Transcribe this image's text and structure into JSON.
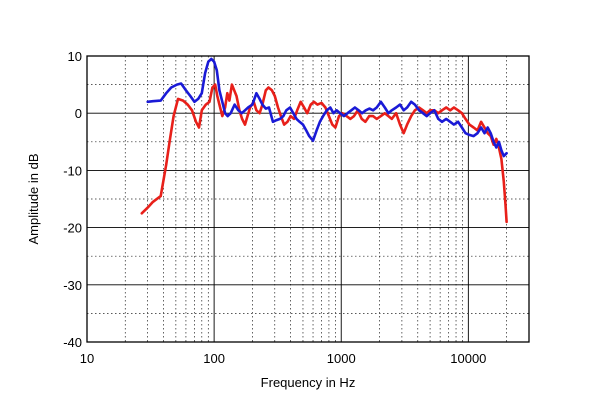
{
  "chart_data": {
    "type": "line",
    "xlabel": "Frequency in Hz",
    "ylabel": "Amplitude in dB",
    "x_scale": "log",
    "xlim": [
      10,
      30000
    ],
    "ylim": [
      -40,
      10
    ],
    "x_ticks": [
      10,
      100,
      1000,
      10000
    ],
    "x_tick_labels": [
      "10",
      "100",
      "1000",
      "10000"
    ],
    "y_ticks": [
      10,
      0,
      -10,
      -20,
      -30,
      -40
    ],
    "y_tick_labels": [
      "10",
      "0",
      "-10",
      "-20",
      "-30",
      "-40"
    ],
    "grid": true,
    "legend": "none",
    "series": [
      {
        "color": "#e8201a",
        "points": [
          [
            27,
            -17.5
          ],
          [
            30,
            -16.5
          ],
          [
            33,
            -15.5
          ],
          [
            38,
            -14.5
          ],
          [
            42,
            -9
          ],
          [
            45,
            -4.5
          ],
          [
            48,
            -0.5
          ],
          [
            52,
            2.5
          ],
          [
            57,
            2.2
          ],
          [
            62,
            1.5
          ],
          [
            67,
            0.5
          ],
          [
            72,
            -1.5
          ],
          [
            76,
            -2.5
          ],
          [
            80,
            0.5
          ],
          [
            86,
            1.5
          ],
          [
            92,
            2
          ],
          [
            97,
            4.5
          ],
          [
            102,
            5
          ],
          [
            106,
            3
          ],
          [
            110,
            1.5
          ],
          [
            116,
            -0.5
          ],
          [
            122,
            1
          ],
          [
            127,
            3.5
          ],
          [
            132,
            2.2
          ],
          [
            138,
            5
          ],
          [
            144,
            4
          ],
          [
            150,
            3
          ],
          [
            158,
            0.5
          ],
          [
            166,
            -1
          ],
          [
            175,
            -2
          ],
          [
            183,
            -0.5
          ],
          [
            192,
            1
          ],
          [
            205,
            2
          ],
          [
            215,
            0.5
          ],
          [
            228,
            0
          ],
          [
            240,
            1.5
          ],
          [
            255,
            4
          ],
          [
            268,
            4.5
          ],
          [
            285,
            4
          ],
          [
            300,
            3
          ],
          [
            318,
            1
          ],
          [
            335,
            -0.5
          ],
          [
            355,
            -2
          ],
          [
            378,
            -1.5
          ],
          [
            400,
            -0.5
          ],
          [
            425,
            -1
          ],
          [
            450,
            0.5
          ],
          [
            480,
            2
          ],
          [
            510,
            1
          ],
          [
            540,
            0
          ],
          [
            575,
            1.5
          ],
          [
            610,
            2
          ],
          [
            650,
            1.5
          ],
          [
            700,
            1.8
          ],
          [
            750,
            1
          ],
          [
            800,
            -0.5
          ],
          [
            850,
            -2
          ],
          [
            900,
            -2.5
          ],
          [
            960,
            -0.5
          ],
          [
            1020,
            0
          ],
          [
            1100,
            -0.5
          ],
          [
            1180,
            -1
          ],
          [
            1260,
            -0.5
          ],
          [
            1350,
            0.5
          ],
          [
            1450,
            -1
          ],
          [
            1550,
            -1.5
          ],
          [
            1660,
            -0.5
          ],
          [
            1780,
            -0.5
          ],
          [
            1900,
            -1
          ],
          [
            2050,
            -0.5
          ],
          [
            2200,
            0
          ],
          [
            2350,
            -0.5
          ],
          [
            2500,
            -1
          ],
          [
            2700,
            0
          ],
          [
            2900,
            -2
          ],
          [
            3100,
            -3.5
          ],
          [
            3300,
            -2
          ],
          [
            3550,
            -0.5
          ],
          [
            3800,
            0.5
          ],
          [
            4100,
            1
          ],
          [
            4400,
            0.5
          ],
          [
            4700,
            0
          ],
          [
            5000,
            0.5
          ],
          [
            5400,
            0.5
          ],
          [
            5800,
            0
          ],
          [
            6200,
            0.5
          ],
          [
            6700,
            1
          ],
          [
            7200,
            0.5
          ],
          [
            7700,
            1
          ],
          [
            8300,
            0.5
          ],
          [
            8900,
            0
          ],
          [
            9500,
            -1
          ],
          [
            10200,
            -2
          ],
          [
            11000,
            -2.5
          ],
          [
            11800,
            -3
          ],
          [
            12600,
            -1.5
          ],
          [
            13400,
            -2.5
          ],
          [
            14200,
            -3.5
          ],
          [
            15000,
            -4
          ],
          [
            15800,
            -5.5
          ],
          [
            16600,
            -4.5
          ],
          [
            17400,
            -6
          ],
          [
            18200,
            -8
          ],
          [
            19000,
            -12
          ],
          [
            19600,
            -16
          ],
          [
            20000,
            -19
          ]
        ]
      },
      {
        "color": "#1a1ad6",
        "points": [
          [
            30,
            2
          ],
          [
            33,
            2.1
          ],
          [
            38,
            2.2
          ],
          [
            42,
            3.5
          ],
          [
            46,
            4.5
          ],
          [
            51,
            5
          ],
          [
            55,
            5.2
          ],
          [
            60,
            4
          ],
          [
            65,
            3
          ],
          [
            70,
            2
          ],
          [
            75,
            2.5
          ],
          [
            80,
            3.5
          ],
          [
            85,
            7
          ],
          [
            90,
            9
          ],
          [
            95,
            9.5
          ],
          [
            100,
            9
          ],
          [
            105,
            7.5
          ],
          [
            110,
            4
          ],
          [
            116,
            2
          ],
          [
            122,
            0
          ],
          [
            128,
            -0.5
          ],
          [
            135,
            0
          ],
          [
            145,
            1.5
          ],
          [
            155,
            0.5
          ],
          [
            165,
            0
          ],
          [
            175,
            0.5
          ],
          [
            185,
            1
          ],
          [
            200,
            1.5
          ],
          [
            215,
            3.5
          ],
          [
            228,
            2.5
          ],
          [
            240,
            1.5
          ],
          [
            255,
            0.8
          ],
          [
            270,
            1
          ],
          [
            290,
            -1.5
          ],
          [
            310,
            -1.2
          ],
          [
            330,
            -1
          ],
          [
            350,
            -0.5
          ],
          [
            370,
            0.5
          ],
          [
            395,
            1
          ],
          [
            420,
            0
          ],
          [
            445,
            -1
          ],
          [
            470,
            -1.5
          ],
          [
            500,
            -2
          ],
          [
            530,
            -3
          ],
          [
            560,
            -4
          ],
          [
            600,
            -4.8
          ],
          [
            640,
            -3
          ],
          [
            680,
            -1.5
          ],
          [
            720,
            -0.5
          ],
          [
            770,
            0.5
          ],
          [
            820,
            1
          ],
          [
            870,
            0
          ],
          [
            920,
            0.5
          ],
          [
            980,
            0
          ],
          [
            1050,
            -0.5
          ],
          [
            1120,
            0
          ],
          [
            1200,
            0.5
          ],
          [
            1280,
            1
          ],
          [
            1370,
            0.5
          ],
          [
            1460,
            0
          ],
          [
            1560,
            0.5
          ],
          [
            1670,
            0.8
          ],
          [
            1780,
            0.5
          ],
          [
            1900,
            1
          ],
          [
            2050,
            2
          ],
          [
            2200,
            1
          ],
          [
            2350,
            0
          ],
          [
            2500,
            0.5
          ],
          [
            2700,
            1
          ],
          [
            2900,
            1.5
          ],
          [
            3100,
            0.5
          ],
          [
            3300,
            1
          ],
          [
            3550,
            2
          ],
          [
            3800,
            1.5
          ],
          [
            4100,
            0.5
          ],
          [
            4400,
            0
          ],
          [
            4700,
            -0.5
          ],
          [
            5000,
            0
          ],
          [
            5400,
            0.5
          ],
          [
            5800,
            -1
          ],
          [
            6200,
            -1.5
          ],
          [
            6700,
            -1
          ],
          [
            7200,
            -1.5
          ],
          [
            7700,
            -2
          ],
          [
            8300,
            -1.5
          ],
          [
            8900,
            -2.5
          ],
          [
            9500,
            -3.5
          ],
          [
            10200,
            -3.8
          ],
          [
            11000,
            -4
          ],
          [
            11800,
            -3.5
          ],
          [
            12600,
            -2.5
          ],
          [
            13400,
            -3.5
          ],
          [
            14200,
            -2.5
          ],
          [
            15000,
            -3.5
          ],
          [
            15800,
            -5
          ],
          [
            16600,
            -6
          ],
          [
            17400,
            -5
          ],
          [
            18200,
            -6.5
          ],
          [
            19000,
            -7.5
          ],
          [
            20000,
            -7
          ]
        ]
      }
    ]
  }
}
